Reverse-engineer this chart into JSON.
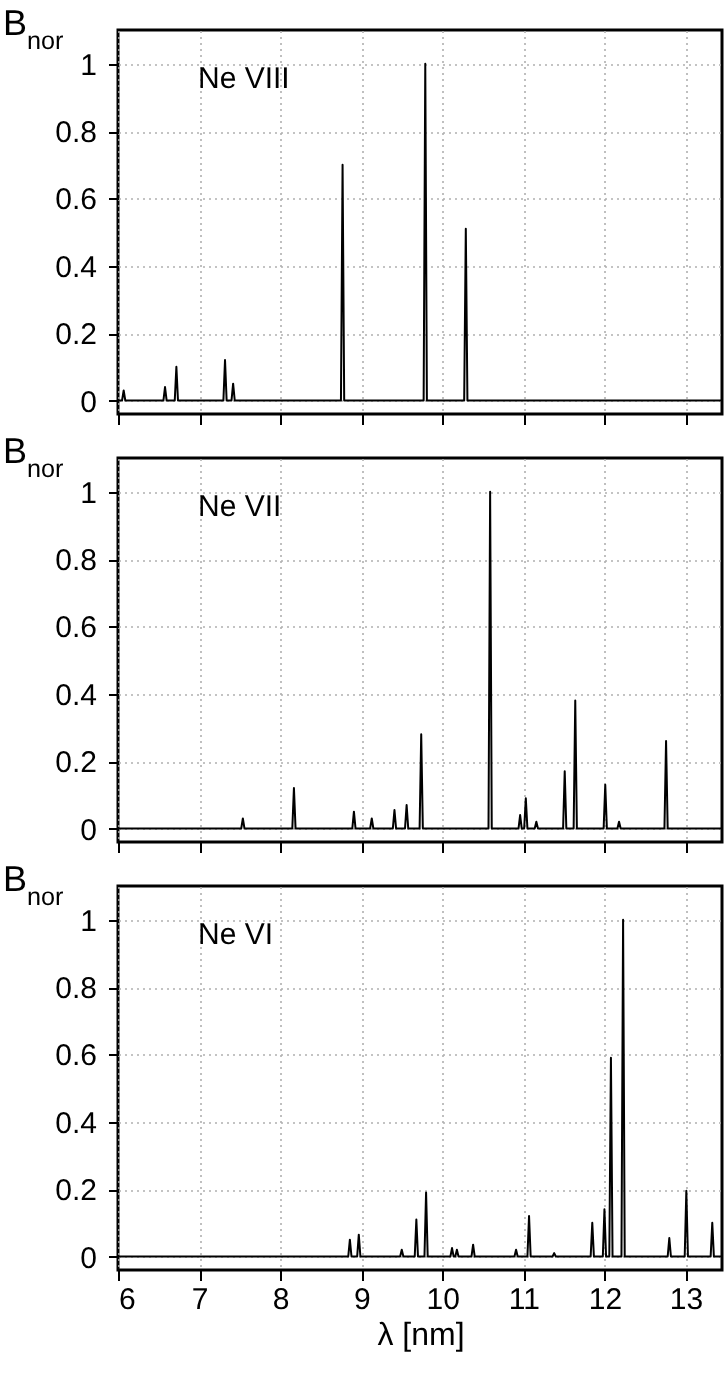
{
  "chart_data": [
    {
      "type": "line",
      "ylabel": "B$_{nor}$",
      "annotations": [
        "Ne VIII"
      ],
      "xlim": [
        6,
        13.45
      ],
      "xticks": [
        6,
        7,
        8,
        9,
        10,
        11,
        12,
        13
      ],
      "ylim": [
        -0.04,
        1.1
      ],
      "yticks": [
        0,
        0.2,
        0.4,
        0.6,
        0.8,
        1
      ],
      "grid": true,
      "tick_labels": "y",
      "series": [
        {
          "color": "#000000",
          "x": [
            6,
            6.05,
            6.07,
            6.09,
            6.56,
            6.58,
            6.6,
            6.7,
            6.72,
            6.74,
            7.3,
            7.32,
            7.34,
            7.4,
            7.42,
            7.44,
            8.75,
            8.77,
            8.79,
            9.77,
            9.79,
            9.81,
            10.27,
            10.29,
            10.31,
            13.45
          ],
          "values": [
            0,
            0,
            0.03,
            0,
            0,
            0.04,
            0,
            0,
            0.1,
            0,
            0,
            0.12,
            0,
            0,
            0.05,
            0,
            0,
            0.7,
            0,
            0,
            1,
            0,
            0,
            0.51,
            0,
            0
          ]
        }
      ]
    },
    {
      "type": "line",
      "ylabel": "B$_{nor}$",
      "annotations": [
        "Ne VII"
      ],
      "xlim": [
        6,
        13.45
      ],
      "xticks": [
        6,
        7,
        8,
        9,
        10,
        11,
        12,
        13
      ],
      "ylim": [
        -0.04,
        1.1
      ],
      "yticks": [
        0,
        0.2,
        0.4,
        0.6,
        0.8,
        1
      ],
      "grid": true,
      "tick_labels": "y",
      "series": [
        {
          "color": "#000000",
          "x": [
            6,
            7.52,
            7.54,
            7.56,
            8.15,
            8.17,
            8.19,
            8.89,
            8.91,
            8.93,
            9.11,
            9.13,
            9.15,
            9.39,
            9.41,
            9.43,
            9.54,
            9.56,
            9.58,
            9.72,
            9.74,
            9.76,
            10.57,
            10.59,
            10.61,
            10.94,
            10.96,
            10.98,
            11.01,
            11.03,
            11.05,
            11.14,
            11.16,
            11.18,
            11.49,
            11.51,
            11.53,
            11.62,
            11.64,
            11.66,
            11.99,
            12.01,
            12.03,
            12.16,
            12.18,
            12.2,
            12.74,
            12.76,
            12.78,
            13.45
          ],
          "values": [
            0,
            0,
            0.03,
            0,
            0,
            0.12,
            0,
            0,
            0.05,
            0,
            0,
            0.03,
            0,
            0,
            0.055,
            0,
            0,
            0.07,
            0,
            0,
            0.28,
            0,
            0,
            1,
            0,
            0,
            0.04,
            0,
            0,
            0.09,
            0,
            0,
            0.02,
            0,
            0,
            0.17,
            0,
            0,
            0.38,
            0,
            0,
            0.13,
            0,
            0,
            0.02,
            0,
            0,
            0.26,
            0,
            0
          ]
        }
      ]
    },
    {
      "type": "line",
      "ylabel": "B$_{nor}$",
      "xlabel": "λ [nm]",
      "annotations": [
        "Ne VI"
      ],
      "xlim": [
        6,
        13.45
      ],
      "xticks": [
        6,
        7,
        8,
        9,
        10,
        11,
        12,
        13
      ],
      "ylim": [
        -0.04,
        1.1
      ],
      "yticks": [
        0,
        0.2,
        0.4,
        0.6,
        0.8,
        1
      ],
      "grid": true,
      "series": [
        {
          "color": "#000000",
          "x": [
            6,
            8.84,
            8.86,
            8.88,
            8.95,
            8.97,
            8.99,
            9.48,
            9.5,
            9.52,
            9.66,
            9.68,
            9.7,
            9.78,
            9.8,
            9.82,
            10.1,
            10.12,
            10.14,
            10.16,
            10.18,
            10.2,
            10.36,
            10.38,
            10.4,
            10.89,
            10.91,
            10.93,
            11.05,
            11.07,
            11.09,
            11.36,
            11.38,
            11.4,
            11.83,
            11.85,
            11.87,
            11.98,
            12.0,
            12.02,
            12.06,
            12.08,
            12.1,
            12.21,
            12.23,
            12.25,
            12.78,
            12.8,
            12.82,
            12.99,
            13.01,
            13.03,
            13.31,
            13.33,
            13.35,
            13.45
          ],
          "values": [
            0,
            0,
            0.05,
            0,
            0,
            0.065,
            0,
            0,
            0.02,
            0,
            0,
            0.11,
            0,
            0,
            0.19,
            0,
            0,
            0.025,
            0,
            0,
            0.02,
            0,
            0,
            0.035,
            0,
            0,
            0.02,
            0,
            0,
            0.12,
            0,
            0,
            0.01,
            0,
            0,
            0.1,
            0,
            0,
            0.14,
            0,
            0,
            0.59,
            0,
            0,
            1,
            0,
            0,
            0.055,
            0,
            0,
            0.195,
            0,
            0,
            0.1,
            0,
            0
          ]
        }
      ]
    }
  ]
}
